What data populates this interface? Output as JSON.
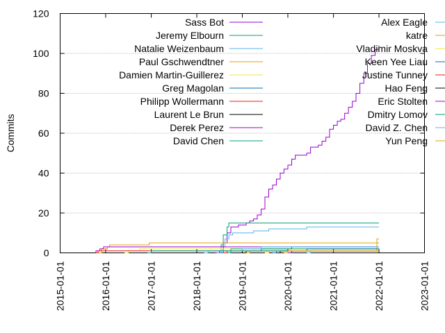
{
  "chart_data": {
    "type": "line",
    "title": "",
    "xlabel": "",
    "ylabel": "Commits",
    "xlim": [
      "2015-01-01",
      "2023-01-01"
    ],
    "ylim": [
      0,
      120
    ],
    "y_ticks": [
      0,
      20,
      40,
      60,
      80,
      100,
      120
    ],
    "x_ticks": [
      "2015-01-01",
      "2016-01-01",
      "2017-01-01",
      "2018-01-01",
      "2019-01-01",
      "2020-01-01",
      "2021-01-01",
      "2022-01-01",
      "2023-01-01"
    ],
    "grid": "horizontal dotted",
    "legend_position": "top",
    "series": [
      {
        "name": "Sass Bot",
        "color": "#9400d3",
        "points": [
          [
            "2018-06-01",
            0
          ],
          [
            "2018-07-01",
            1
          ],
          [
            "2018-08-01",
            5
          ],
          [
            "2018-09-01",
            10
          ],
          [
            "2018-10-01",
            13
          ],
          [
            "2018-12-01",
            14
          ],
          [
            "2019-02-01",
            15
          ],
          [
            "2019-03-01",
            16
          ],
          [
            "2019-04-01",
            17
          ],
          [
            "2019-05-01",
            19
          ],
          [
            "2019-06-01",
            22
          ],
          [
            "2019-07-01",
            28
          ],
          [
            "2019-08-01",
            32
          ],
          [
            "2019-09-01",
            34
          ],
          [
            "2019-10-01",
            37
          ],
          [
            "2019-11-01",
            40
          ],
          [
            "2019-12-01",
            42
          ],
          [
            "2020-01-01",
            44
          ],
          [
            "2020-02-01",
            47
          ],
          [
            "2020-03-01",
            49
          ],
          [
            "2020-04-01",
            49
          ],
          [
            "2020-06-01",
            50
          ],
          [
            "2020-07-01",
            53
          ],
          [
            "2020-09-01",
            54
          ],
          [
            "2020-10-01",
            56
          ],
          [
            "2020-11-01",
            58
          ],
          [
            "2020-12-01",
            62
          ],
          [
            "2021-01-01",
            64
          ],
          [
            "2021-02-01",
            66
          ],
          [
            "2021-03-01",
            67
          ],
          [
            "2021-04-01",
            70
          ],
          [
            "2021-05-01",
            73
          ],
          [
            "2021-06-01",
            76
          ],
          [
            "2021-07-01",
            80
          ],
          [
            "2021-08-01",
            85
          ],
          [
            "2021-09-01",
            90
          ],
          [
            "2021-10-01",
            95
          ],
          [
            "2021-11-01",
            99
          ],
          [
            "2021-12-01",
            102
          ],
          [
            "2022-01-01",
            104
          ]
        ]
      },
      {
        "name": "Jeremy Elbourn",
        "color": "#009e73",
        "points": [
          [
            "2018-06-15",
            0
          ],
          [
            "2018-07-15",
            4
          ],
          [
            "2018-08-01",
            9
          ],
          [
            "2018-09-01",
            13
          ],
          [
            "2018-09-15",
            15
          ],
          [
            "2022-01-01",
            15
          ]
        ]
      },
      {
        "name": "Natalie Weizenbaum",
        "color": "#56b4e9",
        "points": [
          [
            "2018-06-15",
            0
          ],
          [
            "2018-07-15",
            3
          ],
          [
            "2018-08-15",
            7
          ],
          [
            "2018-09-15",
            9
          ],
          [
            "2018-10-15",
            10
          ],
          [
            "2019-01-01",
            10
          ],
          [
            "2019-04-01",
            11
          ],
          [
            "2019-08-01",
            12
          ],
          [
            "2020-01-01",
            12
          ],
          [
            "2020-06-01",
            13
          ],
          [
            "2022-01-01",
            13
          ]
        ]
      },
      {
        "name": "Paul Gschwendtner",
        "color": "#e69f00",
        "points": [
          [
            "2015-11-01",
            0
          ],
          [
            "2015-12-01",
            2
          ],
          [
            "2016-01-15",
            3
          ],
          [
            "2016-02-01",
            4
          ],
          [
            "2016-08-01",
            4
          ],
          [
            "2016-12-15",
            5
          ],
          [
            "2022-01-01",
            5
          ]
        ]
      },
      {
        "name": "Damien Martin-Guillerez",
        "color": "#f0e442",
        "points": [
          [
            "2016-06-01",
            0
          ],
          [
            "2016-07-01",
            1
          ],
          [
            "2016-09-01",
            1
          ],
          [
            "2016-10-01",
            2
          ],
          [
            "2022-01-01",
            2
          ]
        ]
      },
      {
        "name": "Greg Magolan",
        "color": "#0072b2",
        "points": [
          [
            "2018-07-01",
            0
          ],
          [
            "2018-08-01",
            1
          ],
          [
            "2019-06-01",
            2
          ],
          [
            "2019-10-01",
            2
          ],
          [
            "2020-02-01",
            3
          ],
          [
            "2022-01-01",
            3
          ]
        ]
      },
      {
        "name": "Philipp Wollermann",
        "color": "#e51e10",
        "points": [
          [
            "2018-08-01",
            0
          ],
          [
            "2018-09-01",
            1
          ],
          [
            "2022-01-01",
            1
          ]
        ]
      },
      {
        "name": "Laurent Le Brun",
        "color": "#000000",
        "points": [
          [
            "2018-09-01",
            0
          ],
          [
            "2019-02-01",
            1
          ],
          [
            "2022-01-01",
            1
          ]
        ]
      },
      {
        "name": "Derek Perez",
        "color": "#9400d3",
        "points": [
          [
            "2015-10-15",
            0
          ],
          [
            "2015-10-15",
            1
          ],
          [
            "2015-11-15",
            2
          ],
          [
            "2015-12-01",
            2
          ],
          [
            "2015-12-15",
            3
          ],
          [
            "2018-06-01",
            3
          ],
          [
            "2019-06-01",
            3
          ],
          [
            "2022-01-01",
            3
          ]
        ]
      },
      {
        "name": "David Chen",
        "color": "#009e73",
        "points": [
          [
            "2018-09-01",
            0
          ],
          [
            "2018-10-01",
            2
          ],
          [
            "2022-01-01",
            2
          ]
        ]
      },
      {
        "name": "Alex Eagle",
        "color": "#56b4e9",
        "points": [
          [
            "2018-03-01",
            0
          ],
          [
            "2018-04-01",
            1
          ],
          [
            "2019-01-01",
            2
          ],
          [
            "2019-06-01",
            3
          ],
          [
            "2022-01-01",
            3
          ]
        ]
      },
      {
        "name": "katre",
        "color": "#e69f00",
        "points": [
          [
            "2019-02-01",
            0
          ],
          [
            "2019-03-01",
            1
          ],
          [
            "2021-12-01",
            1
          ],
          [
            "2021-12-15",
            7
          ],
          [
            "2022-01-01",
            7
          ]
        ]
      },
      {
        "name": "Vladimir Moskva",
        "color": "#f0e442",
        "points": [
          [
            "2019-07-01",
            0
          ],
          [
            "2019-08-01",
            1
          ],
          [
            "2022-01-01",
            1
          ]
        ]
      },
      {
        "name": "Keen Yee Liau",
        "color": "#0072b2",
        "points": [
          [
            "2019-09-01",
            0
          ],
          [
            "2019-10-01",
            1
          ],
          [
            "2020-06-01",
            2
          ],
          [
            "2022-01-01",
            2
          ]
        ]
      },
      {
        "name": "Justine Tunney",
        "color": "#e51e10",
        "points": [
          [
            "2015-10-15",
            0
          ],
          [
            "2015-11-01",
            1
          ],
          [
            "2022-01-01",
            1
          ]
        ]
      },
      {
        "name": "Hao Feng",
        "color": "#000000",
        "points": [
          [
            "2019-10-01",
            0
          ],
          [
            "2019-11-01",
            1
          ],
          [
            "2022-01-01",
            1
          ]
        ]
      },
      {
        "name": "Eric Stolten",
        "color": "#9400d3",
        "points": [
          [
            "2020-01-01",
            0
          ],
          [
            "2020-02-01",
            1
          ],
          [
            "2022-01-01",
            1
          ]
        ]
      },
      {
        "name": "Dmitry Lomov",
        "color": "#009e73",
        "points": [
          [
            "2016-12-01",
            0
          ],
          [
            "2017-01-01",
            1
          ],
          [
            "2022-01-01",
            1
          ]
        ]
      },
      {
        "name": "David Z. Chen",
        "color": "#56b4e9",
        "points": [
          [
            "2020-06-01",
            0
          ],
          [
            "2020-07-01",
            1
          ],
          [
            "2022-01-01",
            1
          ]
        ]
      },
      {
        "name": "Yun Peng",
        "color": "#e69f00",
        "points": [
          [
            "2019-12-01",
            0
          ],
          [
            "2020-01-01",
            1
          ],
          [
            "2022-01-01",
            1
          ]
        ]
      }
    ]
  }
}
